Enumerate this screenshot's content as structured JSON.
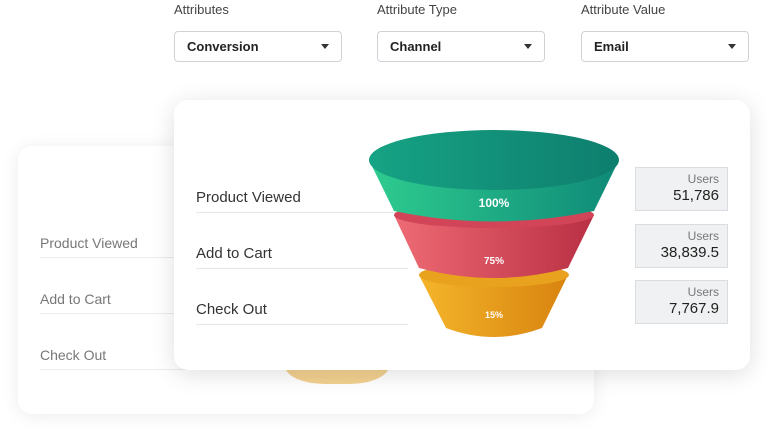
{
  "filters": [
    {
      "label": "Attributes",
      "value": "Conversion"
    },
    {
      "label": "Attribute Type",
      "value": "Channel"
    },
    {
      "label": "Attribute Value",
      "value": "Email"
    }
  ],
  "back_card": {
    "rows": [
      "Product Viewed",
      "Add to Cart",
      "Check Out"
    ]
  },
  "front_card": {
    "rows": [
      {
        "label": "Product Viewed",
        "percent": "100%",
        "users_label": "Users",
        "users_value": "51,786"
      },
      {
        "label": "Add to Cart",
        "percent": "75%",
        "users_label": "Users",
        "users_value": "38,839.5"
      },
      {
        "label": "Check Out",
        "percent": "15%",
        "users_label": "Users",
        "users_value": "7,767.9"
      }
    ]
  },
  "colors": {
    "stage1_light": "#2ecc8f",
    "stage1_dark": "#0f8a78",
    "stage2_light": "#ee6b74",
    "stage2_dark": "#c2384a",
    "stage3_light": "#f4b52a",
    "stage3_dark": "#dc8a14"
  }
}
